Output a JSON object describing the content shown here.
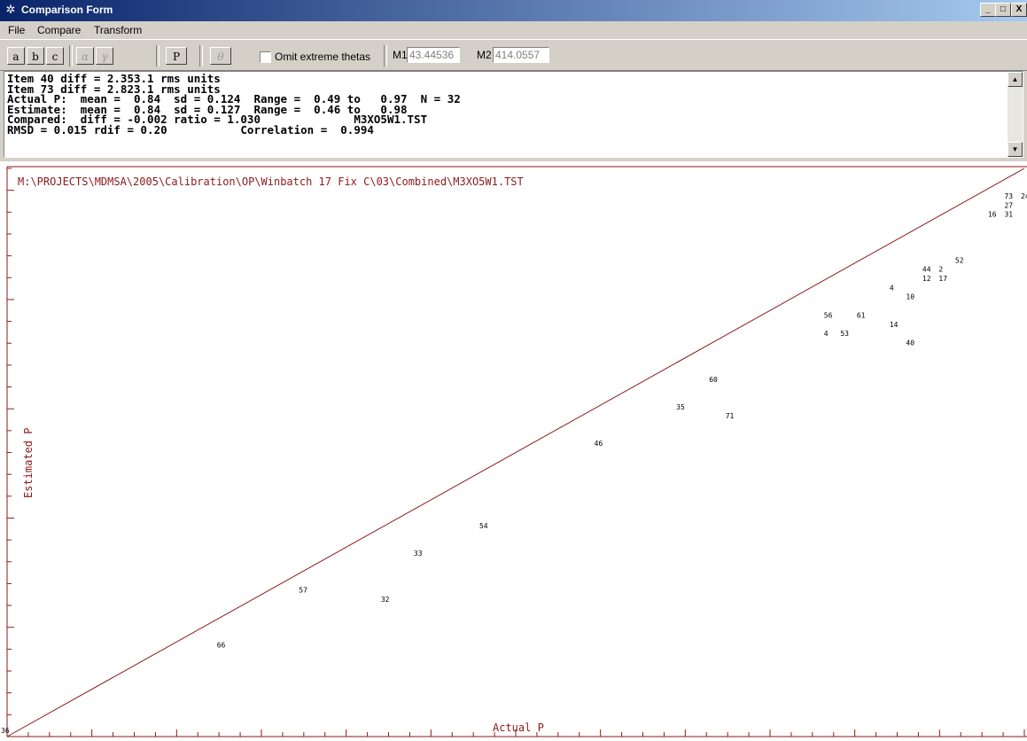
{
  "window": {
    "title": "Comparison Form",
    "title_icon": "gear-icon",
    "controls": [
      "_",
      "□",
      "X"
    ]
  },
  "menu": [
    "File",
    "Compare",
    "Transform"
  ],
  "toolbar": {
    "buttons": [
      "a",
      "b",
      "c"
    ],
    "greek": [
      "α",
      "γ"
    ],
    "p_button": "P",
    "theta_button": "θ",
    "omit_label": "Omit extreme thetas",
    "omit_checked": false,
    "m1_label": "M1",
    "m1_value": "43.44536",
    "m2_label": "M2",
    "m2_value": "414.0557"
  },
  "output_lines": [
    "Item 40 diff = 2.353.1 rms units",
    "Item 73 diff = 2.823.1 rms units",
    "Actual P:  mean =  0.84  sd = 0.124  Range =  0.49 to   0.97  N = 32",
    "Estimate:  mean =  0.84  sd = 0.127  Range =  0.46 to   0.98",
    "Compared:  diff = -0.002 ratio = 1.030              M3XO5W1.TST",
    "RMSD = 0.015 rdif = 0.20           Correlation =  0.994"
  ],
  "plot": {
    "file_path": "M:\\PROJECTS\\MDMSA\\2005\\Calibration\\OP\\Winbatch 17 Fix C\\03\\Combined\\M3XO5W1.TST",
    "xlabel": "Actual P",
    "ylabel": "Estimated P",
    "corner_label": "36",
    "line_color": "#8b1a1a"
  },
  "chart_data": {
    "type": "scatter",
    "title": "",
    "xlabel": "Actual P",
    "ylabel": "Estimated P",
    "xlim": [
      0.36,
      0.98
    ],
    "ylim": [
      0.36,
      0.98
    ],
    "reference_line": {
      "x": [
        0.36,
        0.98
      ],
      "y": [
        0.36,
        0.98
      ]
    },
    "points": [
      {
        "label": "66",
        "x": 0.49,
        "y": 0.46
      },
      {
        "label": "57",
        "x": 0.54,
        "y": 0.52
      },
      {
        "label": "32",
        "x": 0.59,
        "y": 0.51
      },
      {
        "label": "33",
        "x": 0.61,
        "y": 0.56
      },
      {
        "label": "54",
        "x": 0.65,
        "y": 0.59
      },
      {
        "label": "46",
        "x": 0.72,
        "y": 0.68
      },
      {
        "label": "35",
        "x": 0.77,
        "y": 0.72
      },
      {
        "label": "60",
        "x": 0.79,
        "y": 0.75
      },
      {
        "label": "71",
        "x": 0.8,
        "y": 0.71
      },
      {
        "label": "56",
        "x": 0.86,
        "y": 0.82
      },
      {
        "label": "4",
        "x": 0.86,
        "y": 0.8
      },
      {
        "label": "53",
        "x": 0.87,
        "y": 0.8
      },
      {
        "label": "61",
        "x": 0.88,
        "y": 0.82
      },
      {
        "label": "14",
        "x": 0.9,
        "y": 0.81
      },
      {
        "label": "40",
        "x": 0.91,
        "y": 0.79
      },
      {
        "label": "4",
        "x": 0.9,
        "y": 0.85
      },
      {
        "label": "10",
        "x": 0.91,
        "y": 0.84
      },
      {
        "label": "44",
        "x": 0.92,
        "y": 0.87
      },
      {
        "label": "12",
        "x": 0.92,
        "y": 0.86
      },
      {
        "label": "17",
        "x": 0.93,
        "y": 0.86
      },
      {
        "label": "2",
        "x": 0.93,
        "y": 0.87
      },
      {
        "label": "52",
        "x": 0.94,
        "y": 0.88
      },
      {
        "label": "16",
        "x": 0.96,
        "y": 0.93
      },
      {
        "label": "27",
        "x": 0.97,
        "y": 0.94
      },
      {
        "label": "31",
        "x": 0.97,
        "y": 0.93
      },
      {
        "label": "73",
        "x": 0.97,
        "y": 0.95
      },
      {
        "label": "24",
        "x": 0.98,
        "y": 0.95
      }
    ]
  }
}
